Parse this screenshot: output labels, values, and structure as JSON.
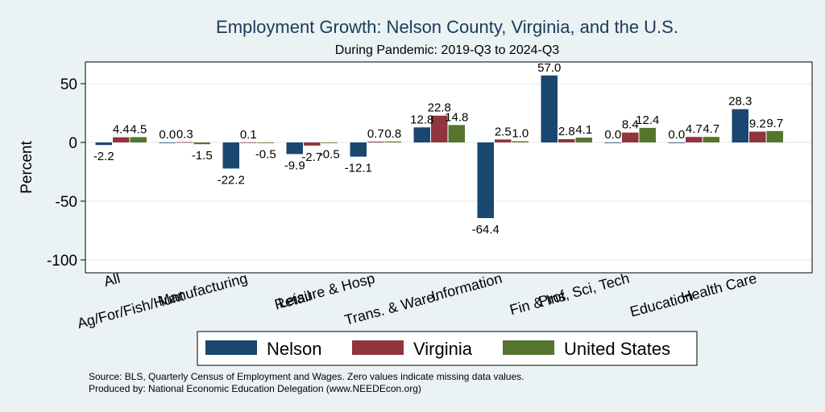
{
  "chart_data": {
    "type": "bar",
    "title": "Employment Growth: Nelson County, Virginia, and the U.S.",
    "subtitle": "During Pandemic: 2019-Q3 to 2024-Q3",
    "ylabel": "Percent",
    "xlabel": "",
    "ylim": [
      -110,
      70
    ],
    "yticks": [
      50,
      0,
      -50,
      -100
    ],
    "grid": true,
    "legend_position": "bottom",
    "categories": [
      "All",
      "Ag/For/Fish/Hunt",
      "Manufacturing",
      "Retail",
      "Leisure & Hosp",
      "Trans. & Ware.",
      "Information",
      "Fin & Ins",
      "Prof, Sci, Tech",
      "Education",
      "Health Care"
    ],
    "series": [
      {
        "name": "Nelson",
        "color": "#1a476f",
        "values": [
          -2.2,
          0.0,
          -22.2,
          -9.9,
          -12.1,
          12.8,
          -64.4,
          57.0,
          0.0,
          0.0,
          28.3
        ],
        "labels": [
          "-2.2",
          "0.0",
          "-22.2",
          "-9.9",
          "-12.1",
          "12.8",
          "-64.4",
          "57.0",
          "0.0",
          "0.0",
          "28.3"
        ]
      },
      {
        "name": "Virginia",
        "color": "#90353b",
        "values": [
          4.4,
          0.3,
          0.1,
          -2.7,
          0.7,
          22.8,
          2.5,
          2.8,
          8.4,
          4.7,
          9.2
        ],
        "labels": [
          "4.4",
          "0.3",
          "0.1",
          "-2.7",
          "0.7",
          "22.8",
          "2.5",
          "2.8",
          "8.4",
          "4.7",
          "9.2"
        ]
      },
      {
        "name": "United States",
        "color": "#55752f",
        "values": [
          4.5,
          -1.5,
          -0.5,
          -0.5,
          0.8,
          14.8,
          1.0,
          4.1,
          12.4,
          4.7,
          9.7
        ],
        "labels": [
          "4.5",
          "-1.5",
          "-0.5",
          "-0.5",
          "0.8",
          "14.8",
          "1.0",
          "4.1",
          "12.4",
          "4.7",
          "9.7"
        ]
      }
    ]
  },
  "footer": {
    "source": "Source: BLS, Quarterly Census of Employment and Wages. Zero values indicate missing data values.",
    "produced_by": "Produced by: National Economic Education Delegation (www.NEEDEcon.org)"
  }
}
